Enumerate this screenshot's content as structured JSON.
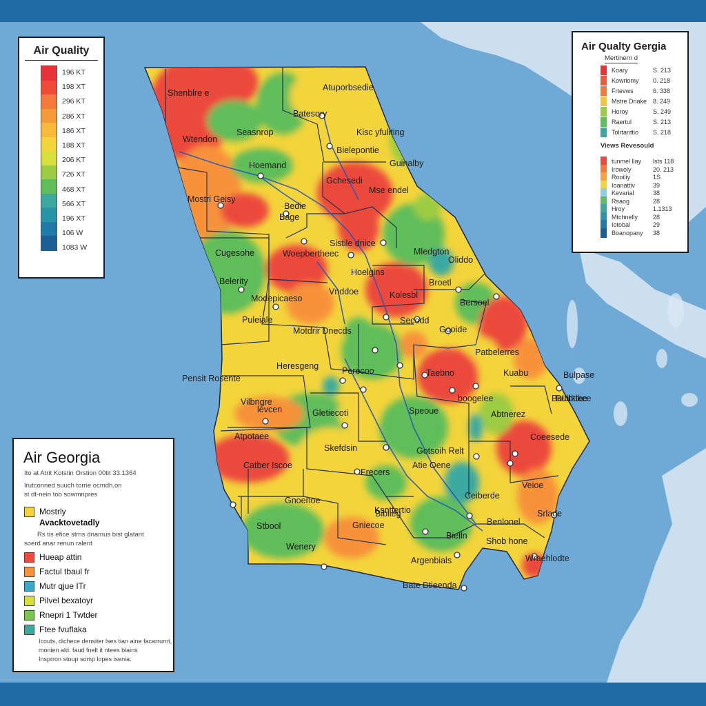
{
  "colors": {
    "ocean": "#6fa9d6",
    "land": "#dce9f3",
    "border": "#1f6aa5",
    "red": "#ec4a3d",
    "orange": "#f7923a",
    "yellow": "#f3d43b",
    "lightgreen": "#9ccc43",
    "green": "#5fbd5a",
    "teal": "#3ba9a0",
    "river": "#2a54b8"
  },
  "aq_legend": {
    "title": "Air Quality",
    "scale_colors": [
      "#e8333a",
      "#f04b35",
      "#f5793a",
      "#f79a3a",
      "#f8b93c",
      "#f3d43b",
      "#d6df3c",
      "#9ccc43",
      "#5fbd5a",
      "#3ba9a0",
      "#2895a8",
      "#1e7aa7",
      "#1a5f96"
    ],
    "labels": [
      "196 KT",
      "198 XT",
      "296 KT",
      "286 XT",
      "186 XT",
      "188 XT",
      "206 KT",
      "726 XT",
      "468 XT",
      "566 XT",
      "196 XT",
      "106 W",
      "1083 W"
    ]
  },
  "top_legend": {
    "title": "Air Qualty Gergia",
    "subtitle": "Mertinern d",
    "rows1": [
      {
        "label": "Koary",
        "value": "S. 213",
        "color": "#e8333a"
      },
      {
        "label": "Kowriomy",
        "value": "0. 218",
        "color": "#f05a3a"
      },
      {
        "label": "Frtevws",
        "value": "6. 338",
        "color": "#f5793a"
      },
      {
        "label": "Mstre Driake",
        "value": "8. 249",
        "color": "#f3c53b"
      },
      {
        "label": "Horoy",
        "value": "S. 249",
        "color": "#9ccc43"
      },
      {
        "label": "Raertul",
        "value": "S. 213",
        "color": "#5fbd5a"
      },
      {
        "label": "Tolrtanttio",
        "value": "S. 218",
        "color": "#3ba9a0"
      }
    ],
    "section2": "Views Revesould",
    "rows2": [
      {
        "label": "tunmel llay",
        "value": "lsts 118",
        "color": "#ec4a3d"
      },
      {
        "label": "Irowoly",
        "value": "20. 213",
        "color": "#f5793a"
      },
      {
        "label": "Rooiliy",
        "value": "1S",
        "color": "#f7a23a"
      },
      {
        "label": "Ioanattiv",
        "value": "39",
        "color": "#f3d43b"
      },
      {
        "label": "Kevarial",
        "value": "38",
        "color": "#8dd0e0"
      },
      {
        "label": "Rsaog",
        "value": "28",
        "color": "#5fbd5a"
      },
      {
        "label": "Hroy",
        "value": "1.1313",
        "color": "#3ba9a0"
      },
      {
        "label": "Mtchnelly",
        "value": "28",
        "color": "#2895a8"
      },
      {
        "label": "Iotobal",
        "value": "29",
        "color": "#1e7aa7"
      },
      {
        "label": "Boanopany",
        "value": "38",
        "color": "#1a5f96"
      }
    ]
  },
  "left_legend": {
    "title": "Air Georgia",
    "lines": [
      "Ito at Atrit Kotstin Orstion 00tit 33.1364",
      "Irutconned suuch torrie ocmdh.on",
      "st dt-nein too sowmnpres"
    ],
    "items1": [
      {
        "label": "Mostrly",
        "color": "#f3d43b"
      }
    ],
    "item_bold": "Avacktovetadly",
    "para1": [
      "Rs tis efice strns dnamus bist glatant",
      "soerd anar renun ralent"
    ],
    "items2": [
      {
        "label": "Hueap attin",
        "color": "#ec4a3d"
      },
      {
        "label": "Factul tbaul fr",
        "color": "#f7923a"
      },
      {
        "label": "Mutr qjue ITr",
        "color": "#3ba9c8"
      },
      {
        "label": "Pilvel bexatoyr",
        "color": "#d6df3c"
      },
      {
        "label": "Rnepri 1 Twtder",
        "color": "#7cc450"
      },
      {
        "label": "Ftee fvuflaka",
        "color": "#3ba9a0"
      }
    ],
    "para2": [
      "Icouts, dichece densiter lses tian aine facarrurnt,",
      "monien ald. faud fnelt it ntees blains",
      "Insprron stoup somp lopes isenia."
    ]
  },
  "map_labels": [
    "Shenblre e",
    "Atuporbsedie",
    "Batesory",
    "Kisc yfuliting",
    "Wtendon",
    "Seasnrop",
    "Bielepontie",
    "Guinalby",
    "Hoemand",
    "Gchesedi",
    "Mse endel",
    "Mostri Geisy",
    "Bedie",
    "Bage",
    "Sistile dnice",
    "Mledgton",
    "Cugesohe",
    "Woepbertheec",
    "Hoelgins",
    "Oliddo",
    "Belerity",
    "Vnddoe",
    "Modepicaeso",
    "Kolesbl",
    "Broetl",
    "Bersoel",
    "Puleiale",
    "Motdrir Dnecds",
    "Secodd",
    "Gooide",
    "Heresgeng",
    "Perecoo",
    "Taebno",
    "Patbelerres",
    "Kuabu",
    "Vilbngre",
    "levcen",
    "Gletiecoti",
    "Speoue",
    "boogelee",
    "Abtnerez",
    "Bulbtktee",
    "Atpotaee",
    "Skefdsin",
    "Gotsoih Relt",
    "Coeesede",
    "Catber Iscoe",
    "Frecers",
    "Atie Oene",
    "Veioe",
    "Ceiberde",
    "Gnoenoe",
    "Biblieg",
    "Stbool",
    "Ksnttertio",
    "Gniecoe",
    "Benlonel",
    "Srlade",
    "Wenery",
    "Bielln",
    "Shob hone",
    "Argenbials",
    "Wraehlodte",
    "Bate Btieenda",
    "Pensit Rosente",
    "Bulpase",
    "Bulbtikee"
  ]
}
